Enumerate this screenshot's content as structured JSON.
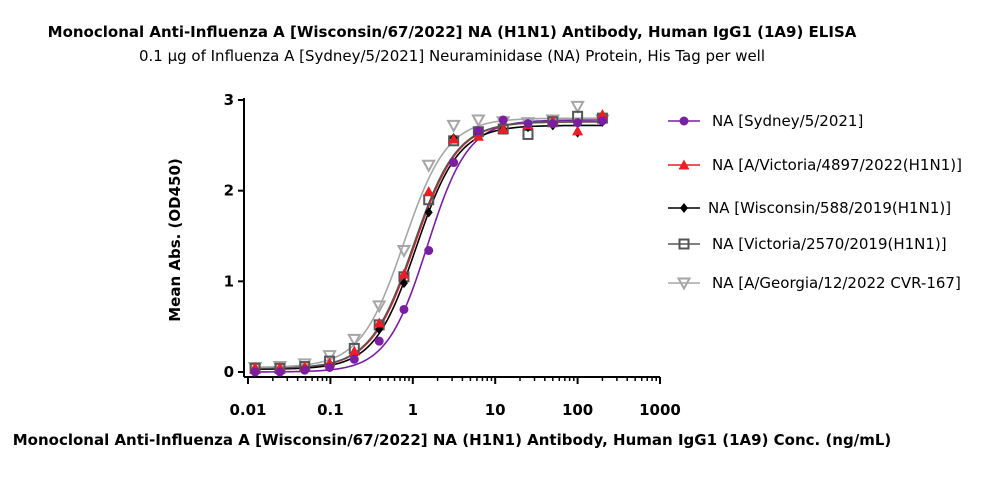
{
  "chart_data": {
    "type": "scatter",
    "title": "Monoclonal Anti-Influenza A [Wisconsin/67/2022] NA (H1N1) Antibody, Human IgG1 (1A9) ELISA",
    "subtitle": "0.1 µg of Influenza A [Sydney/5/2021] Neuraminidase (NA) Protein, His Tag per well",
    "xlabel": "Monoclonal Anti-Influenza A [Wisconsin/67/2022] NA (H1N1) Antibody, Human IgG1 (1A9) Conc. (ng/mL)",
    "ylabel": "Mean Abs. (OD450)",
    "x_scale": "log",
    "xlim": [
      0.01,
      1000
    ],
    "ylim": [
      0,
      3
    ],
    "x_ticks": [
      0.01,
      0.1,
      1,
      10,
      100,
      1000
    ],
    "x_tick_labels": [
      "0.01",
      "0.1",
      "1",
      "10",
      "100",
      "1000"
    ],
    "y_ticks": [
      0,
      1,
      2,
      3
    ],
    "y_tick_labels": [
      "0",
      "1",
      "2",
      "3"
    ],
    "grid": false,
    "legend_position": "right",
    "x": [
      0.0122,
      0.0244,
      0.0488,
      0.0977,
      0.195,
      0.391,
      0.781,
      1.56,
      3.13,
      6.25,
      12.5,
      25,
      50,
      100,
      200
    ],
    "series": [
      {
        "name": "NA [Sydney/5/2021]",
        "color": "#7a1fa2",
        "marker": "circle",
        "values": [
          0.0,
          0.0,
          0.02,
          0.05,
          0.14,
          0.34,
          0.69,
          1.34,
          2.31,
          2.66,
          2.78,
          2.74,
          2.74,
          2.75,
          2.77
        ],
        "fit": {
          "bottom": 0.0,
          "top": 2.78,
          "ec50": 1.5,
          "hill": 1.75
        }
      },
      {
        "name": "NA [A/Victoria/4897/2022(H1N1)]",
        "color": "#ee1c25",
        "marker": "triangle-up",
        "values": [
          0.05,
          0.05,
          0.06,
          0.1,
          0.23,
          0.54,
          1.08,
          1.99,
          2.57,
          2.6,
          2.68,
          2.73,
          2.77,
          2.66,
          2.84
        ],
        "fit": {
          "bottom": 0.04,
          "top": 2.76,
          "ec50": 1.05,
          "hill": 1.65
        }
      },
      {
        "name": "NA [Wisconsin/588/2019(H1N1)]",
        "color": "#000000",
        "marker": "diamond",
        "values": [
          0.03,
          0.03,
          0.05,
          0.09,
          0.2,
          0.47,
          0.98,
          1.76,
          2.58,
          2.63,
          2.68,
          2.7,
          2.72,
          2.64,
          2.76
        ],
        "fit": {
          "bottom": 0.03,
          "top": 2.72,
          "ec50": 1.1,
          "hill": 1.7
        }
      },
      {
        "name": "NA [Victoria/2570/2019(H1N1)]",
        "color": "#555555",
        "marker": "square-open",
        "values": [
          0.04,
          0.04,
          0.06,
          0.12,
          0.26,
          0.52,
          1.05,
          1.9,
          2.55,
          2.65,
          2.68,
          2.62,
          2.76,
          2.82,
          2.8
        ],
        "fit": {
          "bottom": 0.04,
          "top": 2.76,
          "ec50": 1.02,
          "hill": 1.65
        }
      },
      {
        "name": "NA [A/Georgia/12/2022 CVR-167]",
        "color": "#a6a6a6",
        "marker": "triangle-down-open",
        "values": [
          0.05,
          0.06,
          0.09,
          0.18,
          0.36,
          0.73,
          1.34,
          2.28,
          2.72,
          2.78,
          2.76,
          2.75,
          2.78,
          2.93,
          2.78
        ],
        "fit": {
          "bottom": 0.05,
          "top": 2.8,
          "ec50": 0.78,
          "hill": 1.65
        }
      }
    ]
  }
}
